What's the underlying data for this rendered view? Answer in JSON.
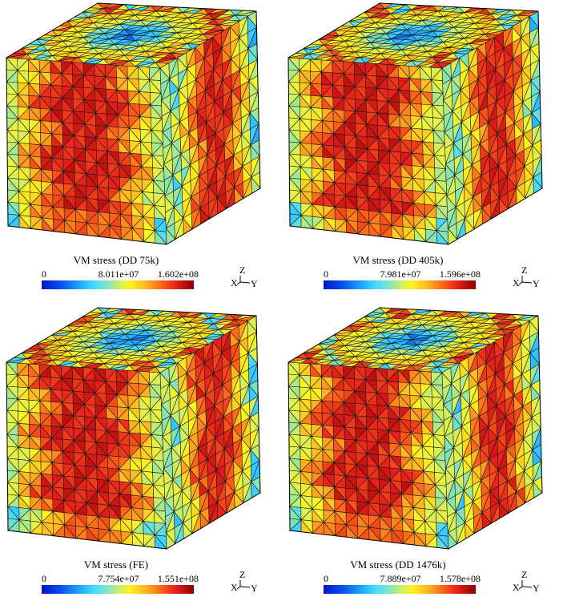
{
  "panels": [
    {
      "title": "VM stress (DD 75k)",
      "min": "0",
      "mid": "8.011e+07",
      "max": "1.602e+08"
    },
    {
      "title": "VM stress (DD 405k)",
      "min": "0",
      "mid": "7.981e+07",
      "max": "1.596e+08"
    },
    {
      "title": "VM stress (FE)",
      "min": "0",
      "mid": "7.754e+07",
      "max": "1.551e+08"
    },
    {
      "title": "VM stress (DD 1476k)",
      "min": "0",
      "mid": "7.889e+07",
      "max": "1.578e+08"
    }
  ],
  "axes": {
    "z": "Z",
    "x": "X",
    "y": "Y"
  },
  "colormap": [
    "#0016c8",
    "#1fa6ff",
    "#43d9ff",
    "#d6f05a",
    "#fff41c",
    "#ffb820",
    "#ff6a18",
    "#e8201a",
    "#8a0000"
  ]
}
